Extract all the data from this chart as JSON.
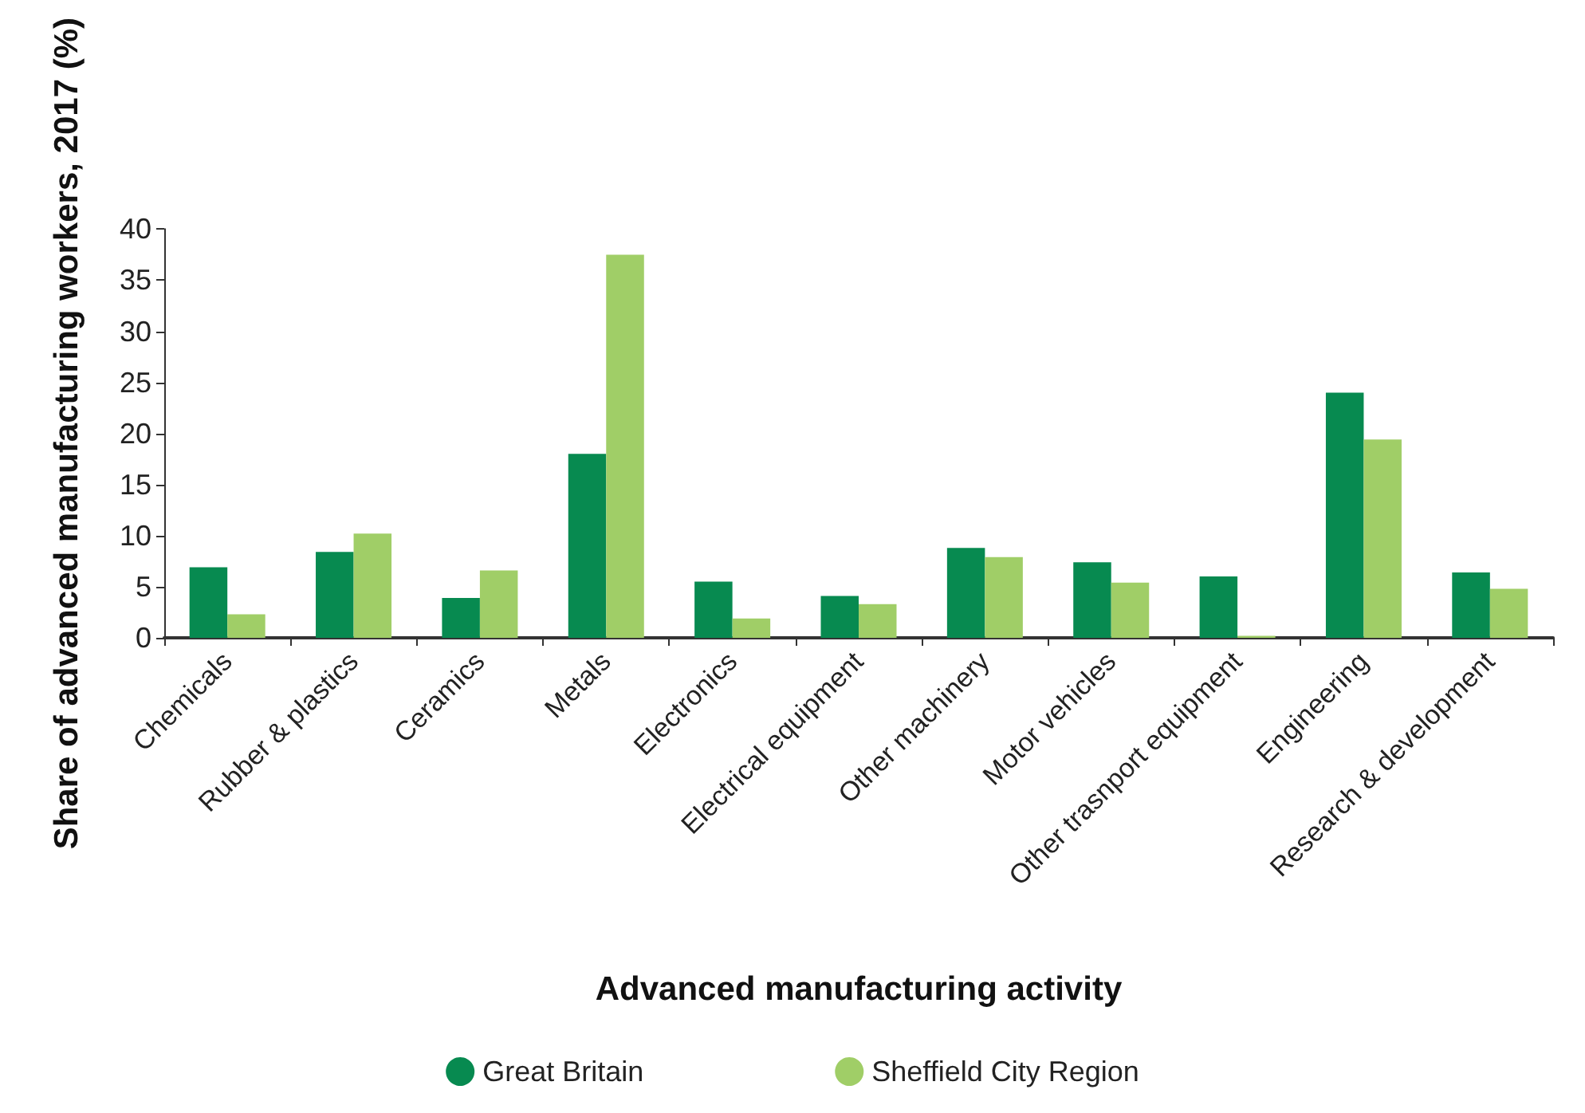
{
  "chart_data": {
    "type": "bar",
    "xlabel": "Advanced manufacturing activity",
    "ylabel": "Share of advanced manufacturing workers, 2017 (%)",
    "categories": [
      "Chemicals",
      "Rubber & plastics",
      "Ceramics",
      "Metals",
      "Electronics",
      "Electrical equipment",
      "Other machinery",
      "Motor vehicles",
      "Other trasnport equipment",
      "Engineering",
      "Research & development"
    ],
    "series": [
      {
        "name": "Great Britain",
        "color": "#078a50",
        "values": [
          6.9,
          8.4,
          3.9,
          18.0,
          5.5,
          4.1,
          8.8,
          7.4,
          6.0,
          24.0,
          6.4
        ]
      },
      {
        "name": "Sheffield City Region",
        "color": "#a0ce67",
        "values": [
          2.3,
          10.2,
          6.6,
          37.5,
          1.9,
          3.3,
          7.9,
          5.4,
          0.2,
          19.4,
          4.8
        ]
      }
    ],
    "ylim": [
      0,
      40
    ],
    "yticks": [
      0,
      5,
      10,
      15,
      20,
      25,
      30,
      35,
      40
    ],
    "grid": false,
    "legend": "bottom"
  }
}
